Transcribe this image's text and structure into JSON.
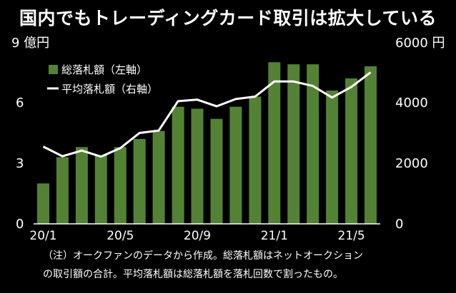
{
  "title": "国内でもトレーディングカード取引は拡大している",
  "left_unit": "9 億円",
  "right_unit": "6000 円",
  "notes": [
    "（注）オークファンのデータから作成。総落札額はネットオークション",
    "の取引額の合計。平均落札額は総落札額を落札回数で割ったもの。"
  ],
  "colors": {
    "bar": "#548235",
    "line": "#ffffff",
    "background": "#000000",
    "axis": "#ffffff"
  },
  "chart_data": {
    "type": "bar+line",
    "categories": [
      "20/1",
      "20/2",
      "20/3",
      "20/4",
      "20/5",
      "20/6",
      "20/7",
      "20/8",
      "20/9",
      "20/10",
      "20/11",
      "20/12",
      "21/1",
      "21/2",
      "21/3",
      "21/4",
      "21/5",
      "21/6"
    ],
    "x_tick_labels": [
      "20/1",
      "20/5",
      "20/9",
      "21/1",
      "21/5"
    ],
    "x_tick_indices": [
      0,
      4,
      8,
      12,
      16
    ],
    "series": [
      {
        "name": "総落札額（左軸）",
        "type": "bar",
        "axis": "left",
        "values": [
          2.0,
          3.3,
          3.8,
          3.4,
          3.8,
          4.2,
          4.6,
          5.8,
          5.7,
          5.2,
          5.8,
          6.3,
          8.0,
          7.9,
          7.9,
          6.6,
          7.2,
          7.8
        ]
      },
      {
        "name": "平均落札額（右軸）",
        "type": "line",
        "axis": "right",
        "values": [
          2550,
          2230,
          2420,
          2220,
          2500,
          3000,
          3080,
          4050,
          4100,
          3880,
          4120,
          4200,
          4700,
          4700,
          4550,
          4170,
          4520,
          5000
        ]
      }
    ],
    "left_axis": {
      "ticks": [
        "0",
        "3",
        "6"
      ],
      "tick_values": [
        0,
        3,
        6
      ],
      "ylim": [
        0,
        9
      ]
    },
    "right_axis": {
      "ticks": [
        "0",
        "2000",
        "4000"
      ],
      "tick_values": [
        0,
        2000,
        4000
      ],
      "ylim": [
        0,
        6000
      ]
    },
    "legend_position": "top-left",
    "grid": false
  }
}
